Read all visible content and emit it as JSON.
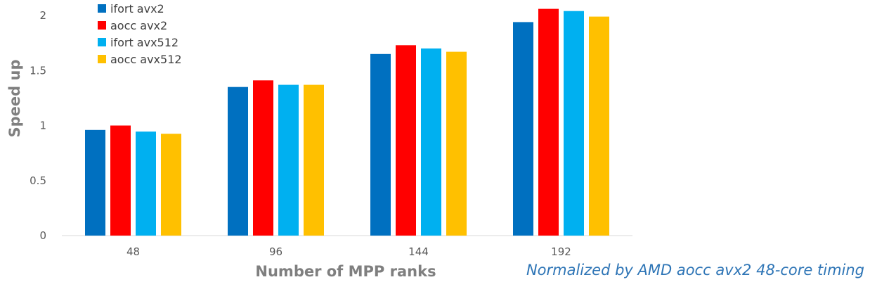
{
  "chart_data": {
    "type": "bar",
    "title": "",
    "xlabel": "Number of MPP ranks",
    "ylabel": "Speed up",
    "categories": [
      "48",
      "96",
      "144",
      "192"
    ],
    "ylim": [
      0,
      2
    ],
    "yticks": [
      "0",
      "0.5",
      "1",
      "1.5",
      "2"
    ],
    "grid": false,
    "legend_position": "top-left",
    "series": [
      {
        "name": "ifort avx2",
        "color": "#0070c0",
        "values": [
          0.96,
          1.35,
          1.65,
          1.94
        ]
      },
      {
        "name": "aocc avx2",
        "color": "#ff0000",
        "values": [
          1.0,
          1.41,
          1.73,
          2.06
        ]
      },
      {
        "name": "ifort avx512",
        "color": "#00b0f0",
        "values": [
          0.945,
          1.37,
          1.7,
          2.04
        ]
      },
      {
        "name": "aocc avx512",
        "color": "#ffc000",
        "values": [
          0.925,
          1.37,
          1.67,
          1.99
        ]
      }
    ],
    "annotation": "Normalized by AMD aocc avx2 48-core timing"
  }
}
